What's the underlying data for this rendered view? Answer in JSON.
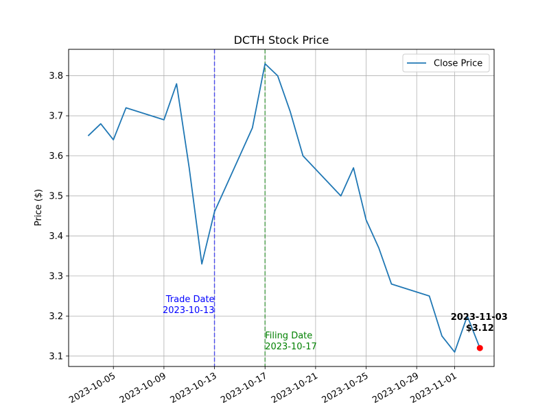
{
  "chart_data": {
    "type": "line",
    "title": "DCTH Stock Price",
    "xlabel": "",
    "ylabel": "Price ($)",
    "x_ticks": [
      "2023-10-05",
      "2023-10-09",
      "2023-10-13",
      "2023-10-17",
      "2023-10-21",
      "2023-10-25",
      "2023-10-29",
      "2023-11-01"
    ],
    "y_ticks": [
      "3.1",
      "3.2",
      "3.3",
      "3.4",
      "3.5",
      "3.6",
      "3.7",
      "3.8"
    ],
    "xlim": [
      "2023-10-01T11:00",
      "2023-11-04T03:00"
    ],
    "ylim": [
      3.074,
      3.866
    ],
    "grid": true,
    "legend_position": "upper right",
    "series": [
      {
        "name": "Close Price",
        "color": "#1f77b4",
        "x": [
          "2023-10-03",
          "2023-10-04",
          "2023-10-05",
          "2023-10-06",
          "2023-10-09",
          "2023-10-10",
          "2023-10-11",
          "2023-10-12",
          "2023-10-13",
          "2023-10-16",
          "2023-10-17",
          "2023-10-18",
          "2023-10-19",
          "2023-10-20",
          "2023-10-23",
          "2023-10-24",
          "2023-10-25",
          "2023-10-26",
          "2023-10-27",
          "2023-10-30",
          "2023-10-31",
          "2023-11-01",
          "2023-11-02",
          "2023-11-03"
        ],
        "values": [
          3.65,
          3.68,
          3.64,
          3.72,
          3.69,
          3.78,
          3.57,
          3.33,
          3.46,
          3.67,
          3.83,
          3.8,
          3.71,
          3.6,
          3.5,
          3.57,
          3.44,
          3.37,
          3.28,
          3.25,
          3.15,
          3.11,
          3.2,
          3.12
        ]
      }
    ],
    "vlines": [
      {
        "date": "2023-10-13",
        "color": "#0000ff",
        "label_line1": "Trade Date",
        "label_line2": "2023-10-13"
      },
      {
        "date": "2023-10-17",
        "color": "#008000",
        "label_line1": "Filing Date",
        "label_line2": "2023-10-17"
      }
    ],
    "last_point": {
      "date": "2023-11-03",
      "value": 3.12,
      "marker_color": "#ff0000",
      "label_line1": "2023-11-03",
      "label_line2": "$3.12"
    }
  }
}
